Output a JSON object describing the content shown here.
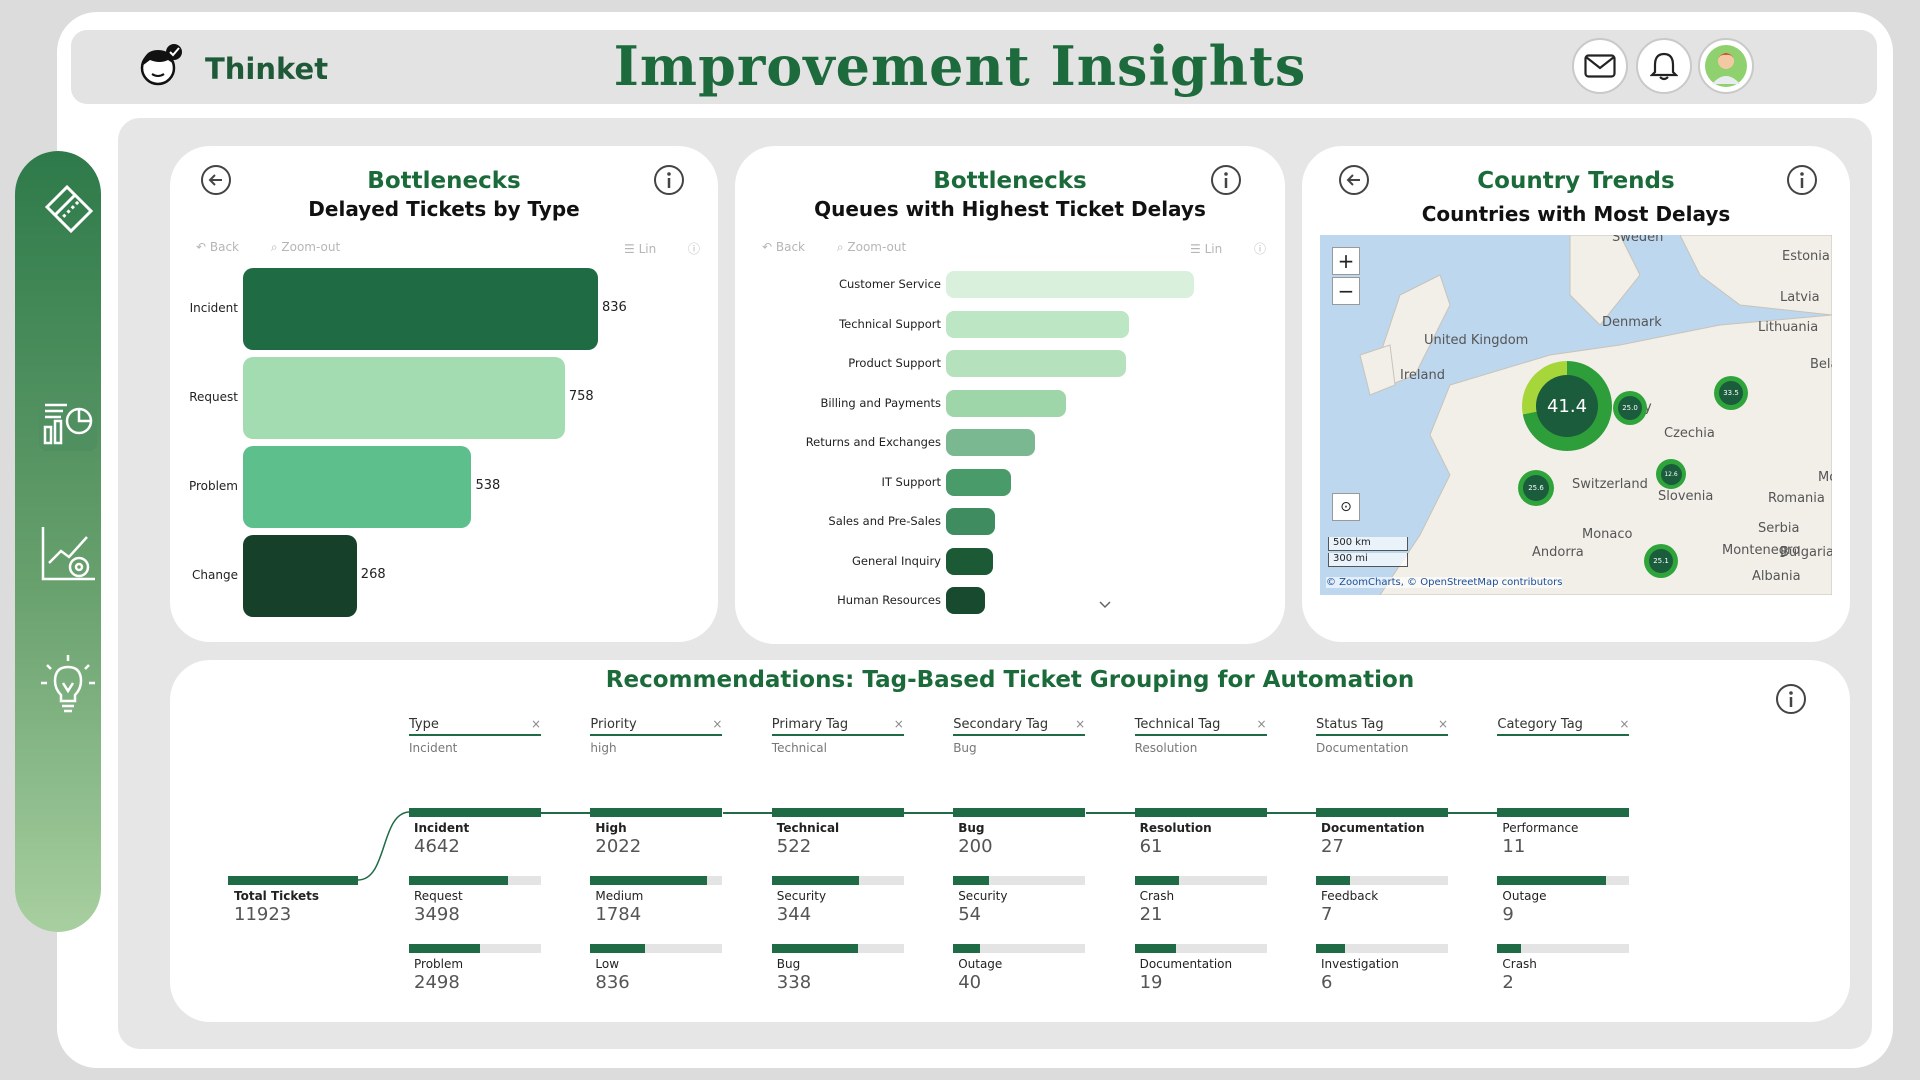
{
  "header": {
    "brand": "Thinket",
    "title": "Improvement Insights"
  },
  "sidebar": {
    "icons": [
      "tickets-icon",
      "analytics-dashboard-icon",
      "growth-settings-icon",
      "lightbulb-icon"
    ]
  },
  "panel_type": {
    "title": "Bottlenecks",
    "subtitle": "Delayed Tickets by Type",
    "toolbar": {
      "back": "Back",
      "zoom_out": "Zoom-out",
      "lin": "Lin"
    }
  },
  "panel_queue": {
    "title": "Bottlenecks",
    "subtitle": "Queues with Highest Ticket Delays",
    "toolbar": {
      "back": "Back",
      "zoom_out": "Zoom-out",
      "lin": "Lin"
    }
  },
  "panel_country": {
    "title": "Country Trends",
    "subtitle": "Countries with Most Delays",
    "map": {
      "labels": [
        "Sweden",
        "Estonia",
        "Latvia",
        "Lithuania",
        "Denmark",
        "United Kingdom",
        "Ireland",
        "Bela",
        "Czechia",
        "Switzerland",
        "Slovenia",
        "Romania",
        "Mo",
        "Serbia",
        "Monaco",
        "Andorra",
        "Montenegro",
        "Bulgaria",
        "Albania",
        "y",
        "A"
      ],
      "cluster_main": "41.4",
      "clusters": [
        "25.0",
        "33.5",
        "25.6",
        "12.6",
        "25.1"
      ],
      "scale_km": "500 km",
      "scale_mi": "300 mi",
      "attribution": "© ZoomCharts, © OpenStreetMap contributors"
    }
  },
  "recommendations": {
    "title": "Recommendations: Tag-Based Ticket Grouping for Automation",
    "root": {
      "label": "Total Tickets",
      "value": "11923"
    },
    "columns": [
      {
        "header": "Type",
        "selected": "Incident",
        "nodes": [
          {
            "label": "Incident",
            "value": "4642",
            "fill": 1.0,
            "bold": true
          },
          {
            "label": "Request",
            "value": "3498",
            "fill": 0.75
          },
          {
            "label": "Problem",
            "value": "2498",
            "fill": 0.54
          }
        ]
      },
      {
        "header": "Priority",
        "selected": "high",
        "nodes": [
          {
            "label": "High",
            "value": "2022",
            "fill": 1.0,
            "bold": true
          },
          {
            "label": "Medium",
            "value": "1784",
            "fill": 0.88
          },
          {
            "label": "Low",
            "value": "836",
            "fill": 0.41
          }
        ]
      },
      {
        "header": "Primary Tag",
        "selected": "Technical",
        "nodes": [
          {
            "label": "Technical",
            "value": "522",
            "fill": 1.0,
            "bold": true
          },
          {
            "label": "Security",
            "value": "344",
            "fill": 0.66
          },
          {
            "label": "Bug",
            "value": "338",
            "fill": 0.65
          }
        ]
      },
      {
        "header": "Secondary Tag",
        "selected": "Bug",
        "nodes": [
          {
            "label": "Bug",
            "value": "200",
            "fill": 1.0,
            "bold": true
          },
          {
            "label": "Security",
            "value": "54",
            "fill": 0.27
          },
          {
            "label": "Outage",
            "value": "40",
            "fill": 0.2
          }
        ]
      },
      {
        "header": "Technical Tag",
        "selected": "Resolution",
        "nodes": [
          {
            "label": "Resolution",
            "value": "61",
            "fill": 1.0,
            "bold": true
          },
          {
            "label": "Crash",
            "value": "21",
            "fill": 0.34
          },
          {
            "label": "Documentation",
            "value": "19",
            "fill": 0.31
          }
        ]
      },
      {
        "header": "Status Tag",
        "selected": "Documentation",
        "nodes": [
          {
            "label": "Documentation",
            "value": "27",
            "fill": 1.0,
            "bold": true
          },
          {
            "label": "Feedback",
            "value": "7",
            "fill": 0.26
          },
          {
            "label": "Investigation",
            "value": "6",
            "fill": 0.22
          }
        ]
      },
      {
        "header": "Category Tag",
        "selected": "",
        "nodes": [
          {
            "label": "Performance",
            "value": "11",
            "fill": 1.0
          },
          {
            "label": "Outage",
            "value": "9",
            "fill": 0.82
          },
          {
            "label": "Crash",
            "value": "2",
            "fill": 0.18
          }
        ]
      }
    ]
  },
  "colors": {
    "accent": "#1d6b3d",
    "sidebar_top": "#2e7a4a",
    "sidebar_bottom": "#a8cfa0"
  },
  "chart_data": [
    {
      "type": "bar",
      "orientation": "horizontal",
      "title": "Delayed Tickets by Type",
      "categories": [
        "Incident",
        "Request",
        "Problem",
        "Change"
      ],
      "values": [
        836,
        758,
        538,
        268
      ],
      "colors": [
        "#1f6b44",
        "#a3dcb0",
        "#5dbf8c",
        "#17402a"
      ]
    },
    {
      "type": "bar",
      "orientation": "horizontal",
      "title": "Queues with Highest Ticket Delays",
      "categories": [
        "Customer Service",
        "Technical Support",
        "Product Support",
        "Billing and Payments",
        "Returns and Exchanges",
        "IT Support",
        "Sales and Pre-Sales",
        "General Inquiry",
        "Human Resources"
      ],
      "values": [
        880,
        650,
        640,
        425,
        315,
        230,
        175,
        165,
        140
      ],
      "colors": [
        "#d8f0dc",
        "#bce6c4",
        "#b5e2bd",
        "#9fd6a9",
        "#7ab891",
        "#4a9b6a",
        "#3f8c61",
        "#1b5a35",
        "#174a2e"
      ]
    }
  ]
}
